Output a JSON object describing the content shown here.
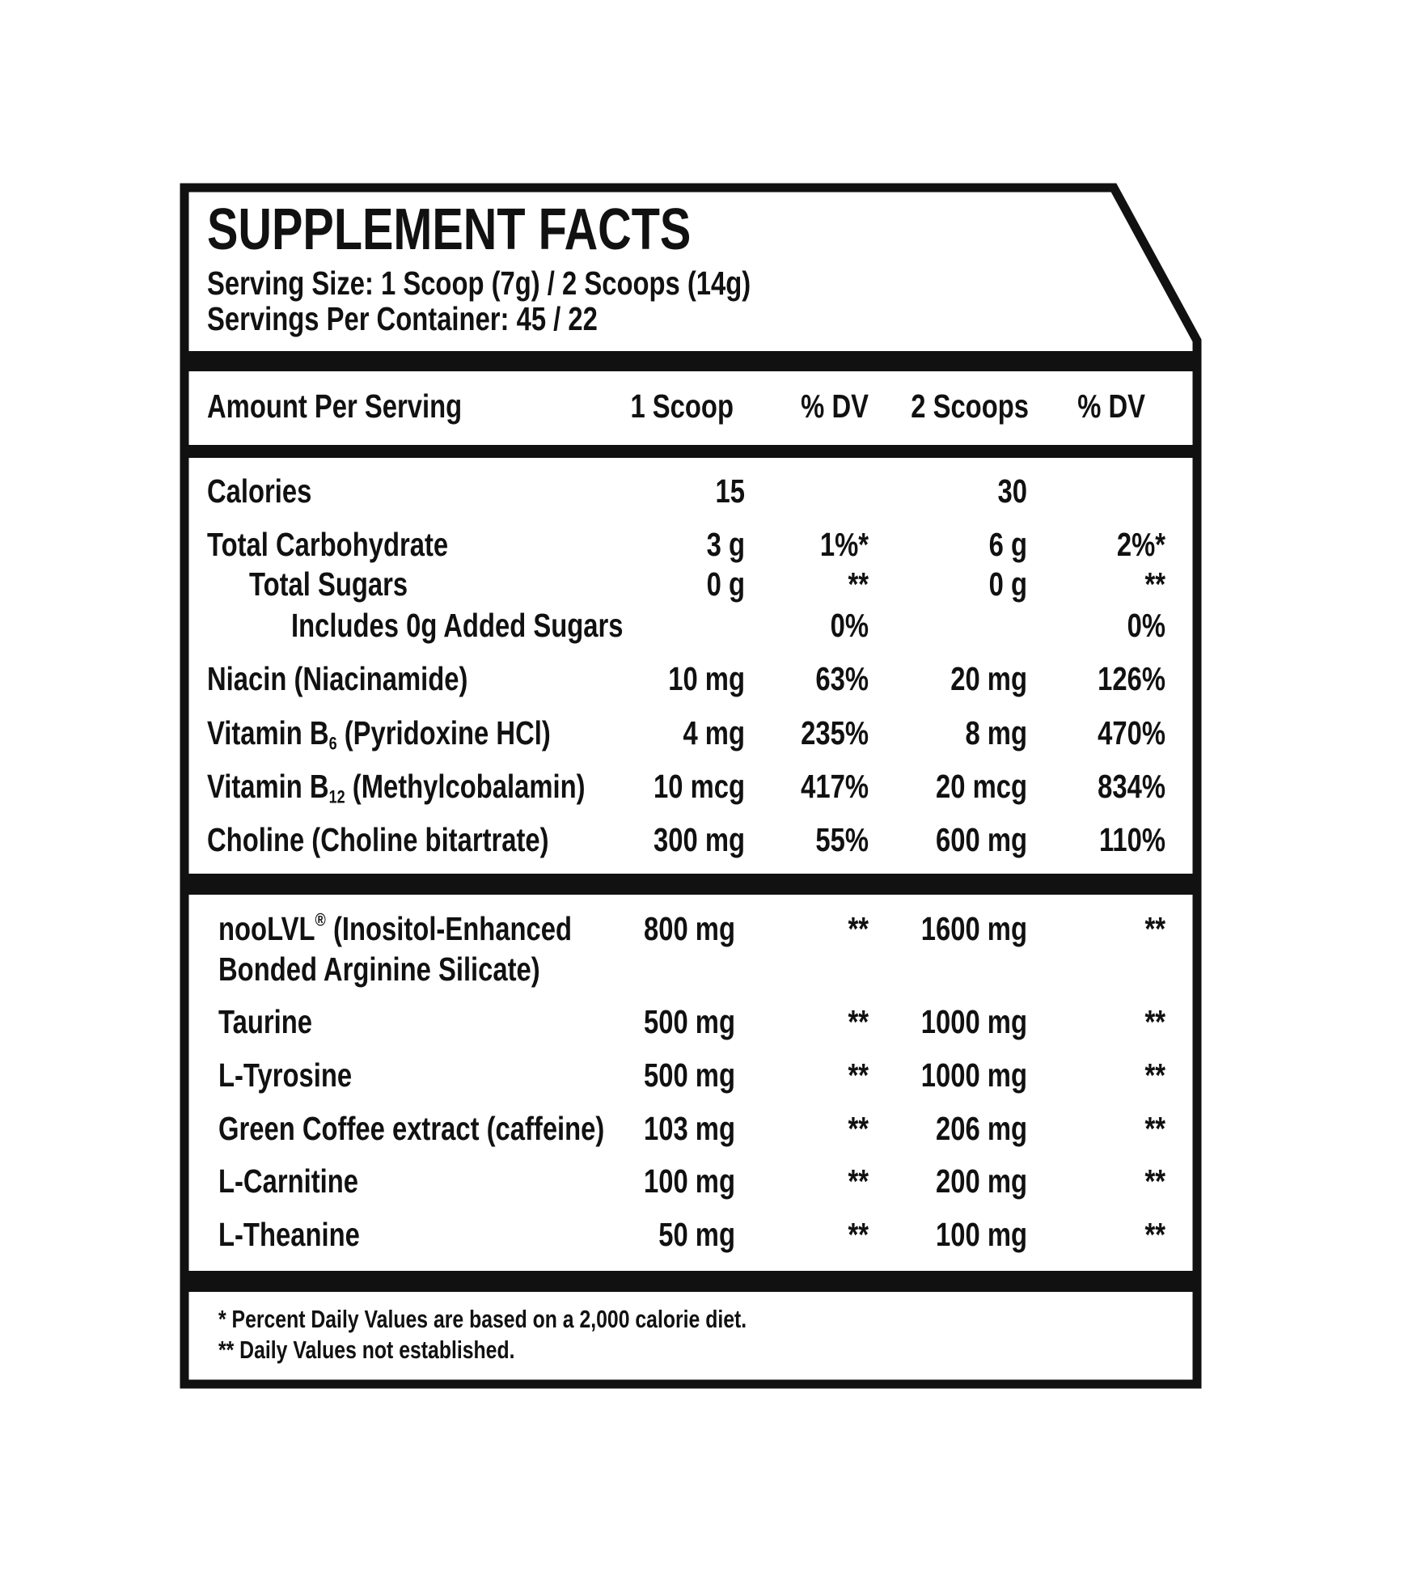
{
  "header": {
    "title": "SUPPLEMENT FACTS",
    "serving_size": "Serving Size: 1 Scoop (7g) / 2 Scoops (14g)",
    "servings_per_container": "Servings Per Container: 45 / 22"
  },
  "columns": [
    "Amount Per Serving",
    "1 Scoop",
    "% DV",
    "2 Scoops",
    "% DV"
  ],
  "nutrients": [
    {
      "name": [
        {
          "text": "Calories"
        }
      ],
      "scoop1": "15",
      "dv1": null,
      "scoop2": "30",
      "dv2": null
    },
    {
      "name": [
        {
          "text": "Total Carbohydrate"
        }
      ],
      "scoop1": "3 g",
      "dv1": "1%*",
      "scoop2": "6 g",
      "dv2": "2%*"
    },
    {
      "name": [
        {
          "text": "Total Sugars"
        }
      ],
      "indent": 1,
      "scoop1": "0 g",
      "dv1": "**",
      "scoop2": "0 g",
      "dv2": "**"
    },
    {
      "name": [
        {
          "text": "Includes 0g Added Sugars"
        }
      ],
      "indent": 2,
      "scoop1": null,
      "dv1": "0%",
      "scoop2": null,
      "dv2": "0%"
    },
    {
      "name": [
        {
          "text": "Niacin (Niacinamide)"
        }
      ],
      "scoop1": "10 mg",
      "dv1": "63%",
      "scoop2": "20 mg",
      "dv2": "126%"
    },
    {
      "name": [
        {
          "text": "Vitamin B"
        },
        {
          "text": "6",
          "style": "sub"
        },
        {
          "text": " (Pyridoxine HCl)"
        }
      ],
      "scoop1": "4 mg",
      "dv1": "235%",
      "scoop2": "8 mg",
      "dv2": "470%"
    },
    {
      "name": [
        {
          "text": "Vitamin B"
        },
        {
          "text": "12",
          "style": "sub"
        },
        {
          "text": " (Methylcobalamin)"
        }
      ],
      "scoop1": "10 mcg",
      "dv1": "417%",
      "scoop2": "20 mcg",
      "dv2": "834%"
    },
    {
      "name": [
        {
          "text": "Choline (Choline bitartrate)"
        }
      ],
      "scoop1": "300 mg",
      "dv1": "55%",
      "scoop2": "600 mg",
      "dv2": "110%"
    }
  ],
  "ingredients": [
    {
      "name": [
        {
          "text": "nooLVL"
        },
        {
          "text": "®",
          "style": "sup"
        },
        {
          "text": " (Inositol-Enhanced"
        },
        {
          "text": "Bonded Arginine Silicate)",
          "style": "newline"
        }
      ],
      "scoop1": "800 mg",
      "dv1": "**",
      "scoop2": "1600 mg",
      "dv2": "**"
    },
    {
      "name": [
        {
          "text": "Taurine"
        }
      ],
      "scoop1": "500 mg",
      "dv1": "**",
      "scoop2": "1000 mg",
      "dv2": "**"
    },
    {
      "name": [
        {
          "text": "L-Tyrosine"
        }
      ],
      "scoop1": "500 mg",
      "dv1": "**",
      "scoop2": "1000 mg",
      "dv2": "**"
    },
    {
      "name": [
        {
          "text": "Green Coffee extract (caffeine)"
        }
      ],
      "scoop1": "103 mg",
      "dv1": "**",
      "scoop2": "206 mg",
      "dv2": "**"
    },
    {
      "name": [
        {
          "text": "L-Carnitine"
        }
      ],
      "scoop1": "100 mg",
      "dv1": "**",
      "scoop2": "200 mg",
      "dv2": "**"
    },
    {
      "name": [
        {
          "text": "L-Theanine"
        }
      ],
      "scoop1": "50 mg",
      "dv1": "**",
      "scoop2": "100 mg",
      "dv2": "**"
    }
  ],
  "footnotes": [
    "* Percent Daily Values are based on a 2,000 calorie diet.",
    "** Daily Values not established."
  ]
}
